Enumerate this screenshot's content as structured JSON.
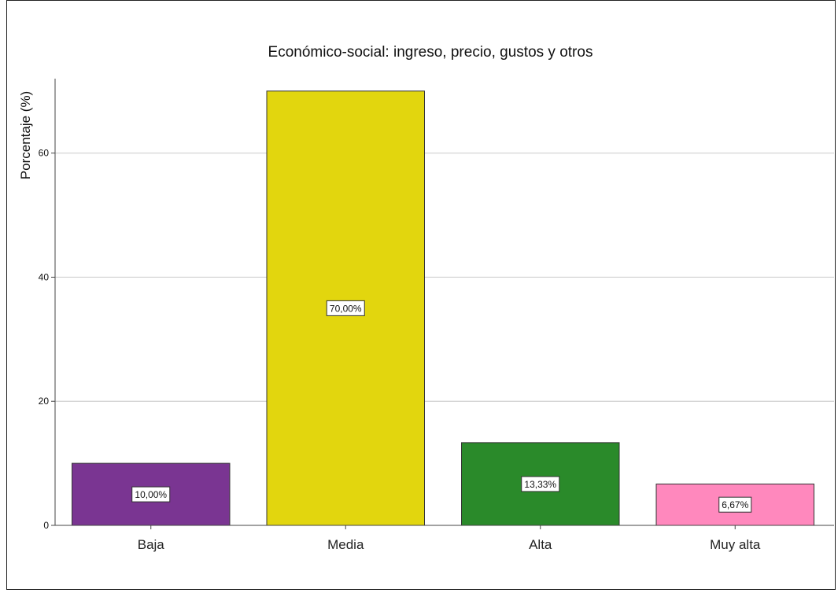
{
  "chart_data": {
    "type": "bar",
    "title": "Económico-social: ingreso, precio, gustos y otros",
    "xlabel": "",
    "ylabel": "Porcentaje (%)",
    "categories": [
      "Baja",
      "Media",
      "Alta",
      "Muy alta"
    ],
    "values": [
      10.0,
      70.0,
      13.33,
      6.67
    ],
    "data_labels": [
      "10,00%",
      "70,00%",
      "13,33%",
      "6,67%"
    ],
    "colors": [
      "#7a3592",
      "#e2d60e",
      "#2a8a2a",
      "#ff88bd"
    ],
    "ylim": [
      0,
      72
    ],
    "yticks": [
      0,
      20,
      40,
      60
    ],
    "ytick_labels": [
      "0",
      "20",
      "40",
      "60"
    ],
    "grid": true,
    "legend": "none"
  }
}
